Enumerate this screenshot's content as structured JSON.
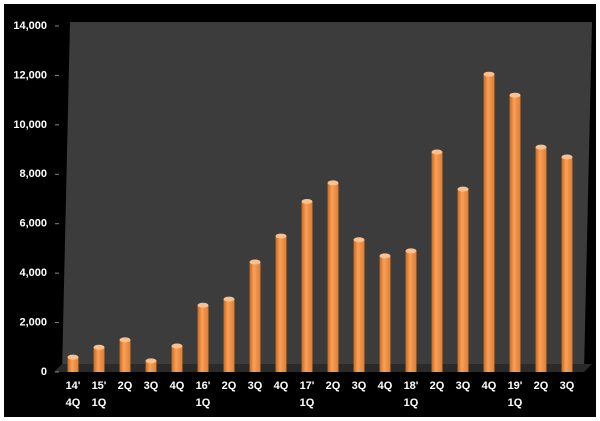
{
  "chart_data": {
    "type": "bar",
    "categories": [
      "14'\n4Q",
      "15'\n1Q",
      "2Q",
      "3Q",
      "4Q",
      "16'\n1Q",
      "2Q",
      "3Q",
      "4Q",
      "17'\n1Q",
      "2Q",
      "3Q",
      "4Q",
      "18'\n1Q",
      "2Q",
      "3Q",
      "4Q",
      "19'\n1Q",
      "2Q",
      "3Q"
    ],
    "values": [
      600,
      1000,
      1300,
      450,
      1050,
      2700,
      2950,
      4450,
      5500,
      6900,
      7650,
      5350,
      4700,
      4900,
      8900,
      7400,
      12050,
      11200,
      9100,
      8700
    ],
    "color": "#f79646",
    "ylim": [
      0,
      14000
    ],
    "yticks": [
      0,
      {
        "value": 2000,
        "label": "2,000"
      },
      {
        "value": 4000,
        "label": "4,000"
      },
      {
        "value": 6000,
        "label": "6,000"
      },
      {
        "value": 8000,
        "label": "8,000"
      },
      {
        "value": 10000,
        "label": "10,000"
      },
      {
        "value": 12000,
        "label": "12,000"
      },
      {
        "value": 14000,
        "label": "14,000"
      }
    ]
  }
}
